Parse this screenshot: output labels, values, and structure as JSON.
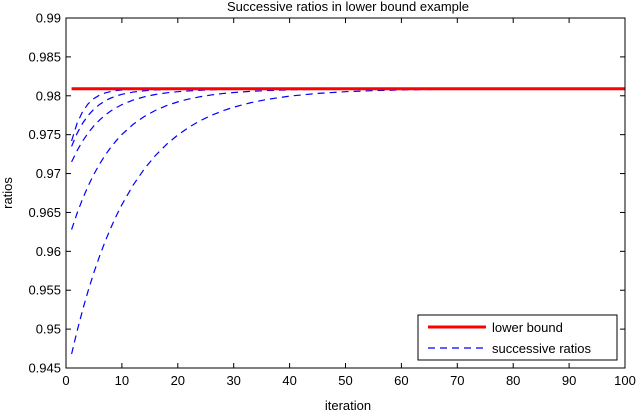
{
  "chart_data": {
    "type": "line",
    "title": "Successive ratios in lower bound example",
    "xlabel": "iteration",
    "ylabel": "ratios",
    "xlim": [
      0,
      100
    ],
    "ylim": [
      0.945,
      0.99
    ],
    "xticks": [
      0,
      10,
      20,
      30,
      40,
      50,
      60,
      70,
      80,
      90,
      100
    ],
    "yticks": [
      0.945,
      0.95,
      0.955,
      0.96,
      0.965,
      0.97,
      0.975,
      0.98,
      0.985,
      0.99
    ],
    "ytick_labels": [
      "0.945",
      "0.95",
      "0.955",
      "0.96",
      "0.965",
      "0.97",
      "0.975",
      "0.98",
      "0.985",
      "0.99"
    ],
    "xtick_labels": [
      "0",
      "10",
      "20",
      "30",
      "40",
      "50",
      "60",
      "70",
      "80",
      "90",
      "100"
    ],
    "grid": false,
    "legend_position": "bottom-right",
    "lower_bound": {
      "name": "lower bound",
      "color": "#ff0000",
      "value": 0.9809,
      "x_range": [
        1,
        100
      ]
    },
    "successive_ratios": {
      "name": "successive ratios",
      "color": "#0000ff",
      "limit": 0.9809,
      "x": [
        1,
        2,
        3,
        4,
        5,
        6,
        7,
        8,
        9,
        10,
        12,
        14,
        16,
        18,
        20,
        22,
        24,
        26,
        28,
        30,
        33,
        36,
        40,
        45,
        50,
        55,
        60,
        65,
        70,
        80,
        90,
        100
      ],
      "series": [
        {
          "start": 0.9468,
          "rate": 0.092
        },
        {
          "start": 0.9628,
          "rate": 0.125
        },
        {
          "start": 0.9715,
          "rate": 0.17
        },
        {
          "start": 0.9735,
          "rate": 0.26
        },
        {
          "start": 0.9742,
          "rate": 0.42
        }
      ]
    }
  }
}
